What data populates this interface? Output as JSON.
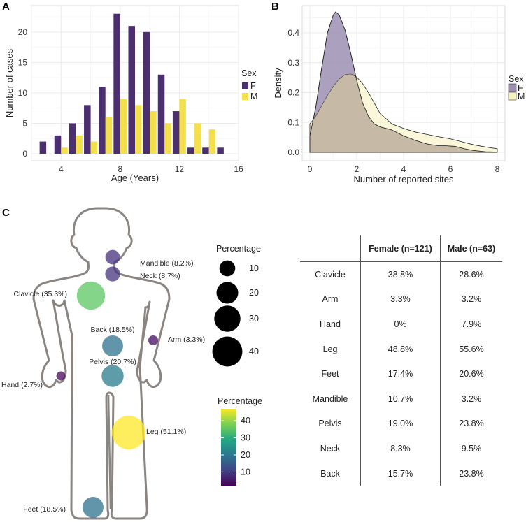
{
  "panels": {
    "a": "A",
    "b": "B",
    "c": "C"
  },
  "colors": {
    "female": "#4B2F6E",
    "male": "#F4E04D",
    "female_fill": "#9C8FB1",
    "male_fill": "#F6F1C3",
    "density_overlap": "#BFB09A",
    "body_outline": "#8a8580"
  },
  "chart_data": [
    {
      "type": "bar",
      "id": "A",
      "xlabel": "Age (Years)",
      "ylabel": "Number of cases",
      "xlim": [
        2,
        16
      ],
      "ylim": [
        0,
        24
      ],
      "xticks": [
        4,
        8,
        12,
        16
      ],
      "yticks": [
        0,
        5,
        10,
        15,
        20
      ],
      "legend": {
        "title": "Sex",
        "entries": [
          "F",
          "M"
        ],
        "placement": "right"
      },
      "series": [
        {
          "name": "F",
          "x": [
            3,
            4,
            5,
            6,
            7,
            8,
            9,
            10,
            11,
            12,
            13,
            14,
            15
          ],
          "values": [
            2,
            3,
            5,
            8,
            11,
            23,
            21,
            20,
            13,
            7,
            1,
            1,
            1
          ]
        },
        {
          "name": "M",
          "x": [
            4,
            5,
            6,
            7,
            8,
            9,
            10,
            11,
            12,
            13,
            14
          ],
          "values": [
            1,
            3,
            2,
            6,
            9,
            8,
            7,
            5,
            9,
            5,
            4
          ]
        }
      ]
    },
    {
      "type": "area",
      "id": "B",
      "xlabel": "Number of reported sites",
      "ylabel": "Density",
      "xlim": [
        0,
        8
      ],
      "ylim": [
        0,
        0.47
      ],
      "xticks": [
        0,
        2,
        4,
        6,
        8
      ],
      "yticks": [
        0.0,
        0.1,
        0.2,
        0.3,
        0.4
      ],
      "ytick_labels": [
        "0.0",
        "0.1",
        "0.2",
        "0.3",
        "0.4"
      ],
      "legend": {
        "title": "Sex",
        "entries": [
          "F",
          "M"
        ],
        "placement": "right"
      },
      "series": [
        {
          "name": "F",
          "x": [
            0,
            0.25,
            0.5,
            0.75,
            1,
            1.1,
            1.25,
            1.5,
            1.75,
            2,
            2.25,
            2.5,
            2.75,
            3,
            3.25,
            3.5,
            3.75,
            4,
            4.25,
            4.5,
            5,
            5.5,
            5.8,
            6.2,
            6.6,
            7,
            7.5,
            8
          ],
          "values": [
            0.055,
            0.15,
            0.28,
            0.4,
            0.46,
            0.47,
            0.46,
            0.41,
            0.33,
            0.24,
            0.165,
            0.12,
            0.095,
            0.085,
            0.08,
            0.075,
            0.065,
            0.055,
            0.048,
            0.04,
            0.028,
            0.022,
            0.022,
            0.02,
            0.012,
            0.006,
            0.002,
            0.001
          ]
        },
        {
          "name": "M",
          "x": [
            0,
            0.25,
            0.5,
            0.75,
            1,
            1.25,
            1.5,
            1.75,
            2,
            2.25,
            2.5,
            2.75,
            3,
            3.5,
            4,
            4.5,
            5,
            5.5,
            6,
            6.5,
            7,
            7.5,
            8
          ],
          "values": [
            0.095,
            0.12,
            0.155,
            0.19,
            0.22,
            0.245,
            0.26,
            0.262,
            0.252,
            0.23,
            0.2,
            0.165,
            0.13,
            0.095,
            0.08,
            0.068,
            0.06,
            0.052,
            0.045,
            0.035,
            0.025,
            0.018,
            0.012
          ]
        }
      ]
    },
    {
      "type": "scatter",
      "id": "C-map",
      "sites": [
        {
          "name": "Mandible",
          "label": "Mandible (8.2%)",
          "value": 8.2
        },
        {
          "name": "Neck",
          "label": "Neck (8.7%)",
          "value": 8.7
        },
        {
          "name": "Clavicle",
          "label": "Clavicle (35.3%)",
          "value": 35.3
        },
        {
          "name": "Back",
          "label": "Back (18.5%)",
          "value": 18.5
        },
        {
          "name": "Arm",
          "label": "Arm (3.3%)",
          "value": 3.3
        },
        {
          "name": "Pelvis",
          "label": "Pelvis (20.7%)",
          "value": 20.7
        },
        {
          "name": "Hand",
          "label": "Hand (2.7%)",
          "value": 2.7
        },
        {
          "name": "Leg",
          "label": "Leg (51.1%)",
          "value": 51.1
        },
        {
          "name": "Feet",
          "label": "Feet (18.5%)",
          "value": 18.5
        }
      ],
      "size_legend": {
        "title": "Percentage",
        "values": [
          10,
          20,
          30,
          40
        ]
      },
      "color_legend": {
        "title": "Percentage",
        "ticks": [
          10,
          20,
          30,
          40
        ],
        "range": [
          2,
          47
        ]
      }
    },
    {
      "type": "table",
      "id": "C-table",
      "columns": [
        "",
        "Female (n=121)",
        "Male (n=63)"
      ],
      "rows": [
        [
          "Clavicle",
          "38.8%",
          "28.6%"
        ],
        [
          "Arm",
          "3.3%",
          "3.2%"
        ],
        [
          "Hand",
          "0%",
          "7.9%"
        ],
        [
          "Leg",
          "48.8%",
          "55.6%"
        ],
        [
          "Feet",
          "17.4%",
          "20.6%"
        ],
        [
          "Mandible",
          "10.7%",
          "3.2%"
        ],
        [
          "Pelvis",
          "19.0%",
          "23.8%"
        ],
        [
          "Neck",
          "8.3%",
          "9.5%"
        ],
        [
          "Back",
          "15.7%",
          "23.8%"
        ]
      ]
    }
  ]
}
